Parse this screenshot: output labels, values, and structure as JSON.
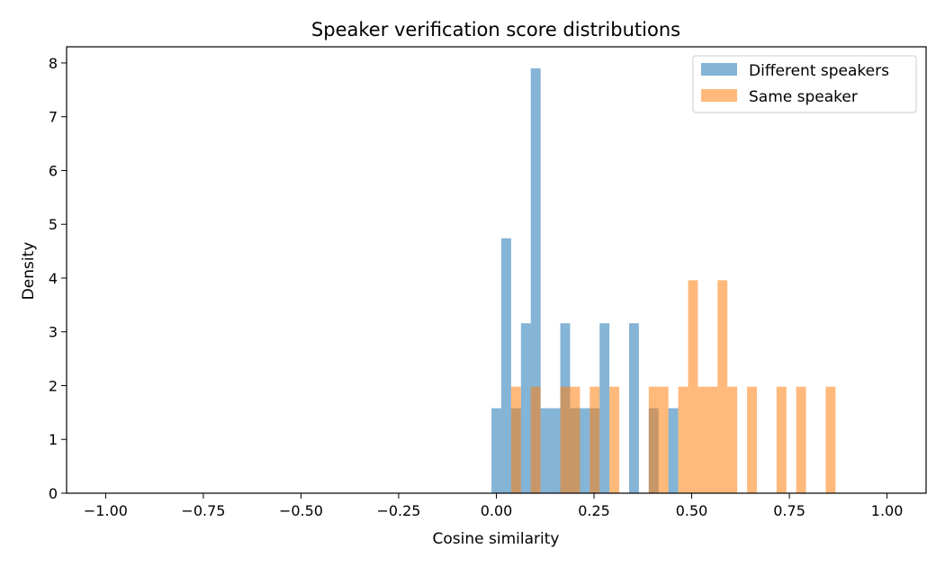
{
  "chart_data": {
    "type": "bar",
    "title": "Speaker verification score distributions",
    "xlabel": "Cosine similarity",
    "ylabel": "Density",
    "xlim": [
      -1.1,
      1.1
    ],
    "ylim": [
      0,
      8.3
    ],
    "xticks": [
      -1.0,
      -0.75,
      -0.5,
      -0.25,
      0.0,
      0.25,
      0.5,
      0.75,
      1.0
    ],
    "xtick_labels": [
      "−1.00",
      "−0.75",
      "−0.50",
      "−0.25",
      "0.00",
      "0.25",
      "0.50",
      "0.75",
      "1.00"
    ],
    "yticks": [
      0,
      1,
      2,
      3,
      4,
      5,
      6,
      7,
      8
    ],
    "ytick_labels": [
      "0",
      "1",
      "2",
      "3",
      "4",
      "5",
      "6",
      "7",
      "8"
    ],
    "grid": false,
    "legend_position": "top-right",
    "series": [
      {
        "name": "Different speakers",
        "color": "#1f77b4",
        "opacity": 0.55,
        "bin_width": 0.02516,
        "bins": [
          {
            "x0": -0.0125,
            "y": 1.58
          },
          {
            "x0": 0.01266,
            "y": 4.74
          },
          {
            "x0": 0.03782,
            "y": 1.58
          },
          {
            "x0": 0.06298,
            "y": 3.16
          },
          {
            "x0": 0.08814,
            "y": 7.9
          },
          {
            "x0": 0.1133,
            "y": 1.58
          },
          {
            "x0": 0.13846,
            "y": 1.58
          },
          {
            "x0": 0.16362,
            "y": 3.16
          },
          {
            "x0": 0.18878,
            "y": 1.58
          },
          {
            "x0": 0.21394,
            "y": 1.58
          },
          {
            "x0": 0.2391,
            "y": 1.58
          },
          {
            "x0": 0.26426,
            "y": 3.16
          },
          {
            "x0": 0.31458,
            "y": 0
          },
          {
            "x0": 0.33974,
            "y": 3.16
          },
          {
            "x0": 0.3901,
            "y": 1.58
          },
          {
            "x0": 0.44042,
            "y": 1.58
          }
        ]
      },
      {
        "name": "Same speaker",
        "color": "#ff7f0e",
        "opacity": 0.55,
        "bin_width": 0.02516,
        "bins": [
          {
            "x0": 0.03782,
            "y": 1.98
          },
          {
            "x0": 0.08814,
            "y": 1.98
          },
          {
            "x0": 0.16362,
            "y": 1.98
          },
          {
            "x0": 0.18878,
            "y": 1.98
          },
          {
            "x0": 0.2391,
            "y": 1.98
          },
          {
            "x0": 0.28942,
            "y": 1.98
          },
          {
            "x0": 0.3901,
            "y": 1.98
          },
          {
            "x0": 0.41526,
            "y": 1.98
          },
          {
            "x0": 0.46558,
            "y": 1.98
          },
          {
            "x0": 0.49074,
            "y": 3.96
          },
          {
            "x0": 0.5159,
            "y": 1.98
          },
          {
            "x0": 0.54106,
            "y": 1.98
          },
          {
            "x0": 0.56622,
            "y": 3.96
          },
          {
            "x0": 0.59138,
            "y": 1.98
          },
          {
            "x0": 0.6417,
            "y": 1.98
          },
          {
            "x0": 0.71718,
            "y": 1.98
          },
          {
            "x0": 0.7675,
            "y": 1.98
          },
          {
            "x0": 0.84298,
            "y": 1.98
          }
        ]
      }
    ]
  }
}
